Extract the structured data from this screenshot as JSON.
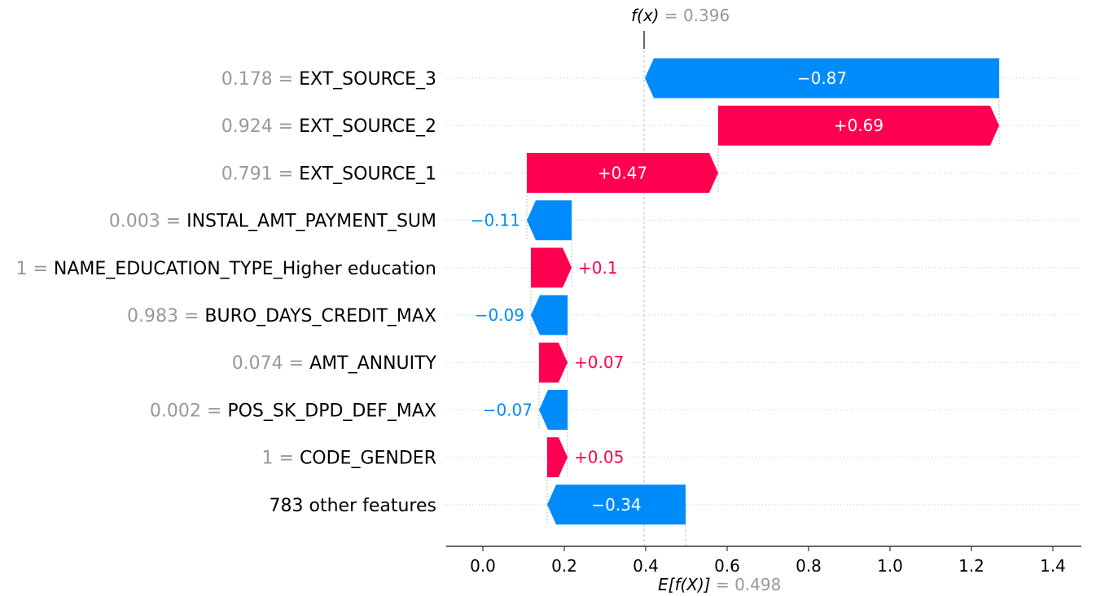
{
  "chart_data": {
    "type": "waterfall",
    "fx_label": "f(x)",
    "fx_value_text": "= 0.396",
    "fx_value": 0.396,
    "ex_label": "E[f(X)]",
    "ex_value_text": "= 0.498",
    "ex_value": 0.498,
    "xlim": [
      -0.09,
      1.47
    ],
    "xticks": [
      0.0,
      0.2,
      0.4,
      0.6,
      0.8,
      1.0,
      1.2,
      1.4
    ],
    "xtick_labels": [
      "0.0",
      "0.2",
      "0.4",
      "0.6",
      "0.8",
      "1.0",
      "1.2",
      "1.4"
    ],
    "features": [
      {
        "value": "0.178 =",
        "name": "EXT_SOURCE_3",
        "contribution": -0.87,
        "label": "−0.87"
      },
      {
        "value": "0.924 =",
        "name": "EXT_SOURCE_2",
        "contribution": 0.69,
        "label": "+0.69"
      },
      {
        "value": "0.791 =",
        "name": "EXT_SOURCE_1",
        "contribution": 0.47,
        "label": "+0.47"
      },
      {
        "value": "0.003 =",
        "name": "INSTAL_AMT_PAYMENT_SUM",
        "contribution": -0.11,
        "label": "−0.11"
      },
      {
        "value": "1 =",
        "name": "NAME_EDUCATION_TYPE_Higher education",
        "contribution": 0.1,
        "label": "+0.1"
      },
      {
        "value": "0.983 =",
        "name": "BURO_DAYS_CREDIT_MAX",
        "contribution": -0.09,
        "label": "−0.09"
      },
      {
        "value": "0.074 =",
        "name": "AMT_ANNUITY",
        "contribution": 0.07,
        "label": "+0.07"
      },
      {
        "value": "0.002 =",
        "name": "POS_SK_DPD_DEF_MAX",
        "contribution": -0.07,
        "label": "−0.07"
      },
      {
        "value": "1 =",
        "name": "CODE_GENDER",
        "contribution": 0.05,
        "label": "+0.05"
      },
      {
        "value": "",
        "name": "783 other features",
        "contribution": -0.34,
        "label": "−0.34"
      }
    ],
    "colors": {
      "positive": "#ff0051",
      "negative": "#008bfb",
      "muted": "#999999",
      "text": "#000000"
    }
  }
}
